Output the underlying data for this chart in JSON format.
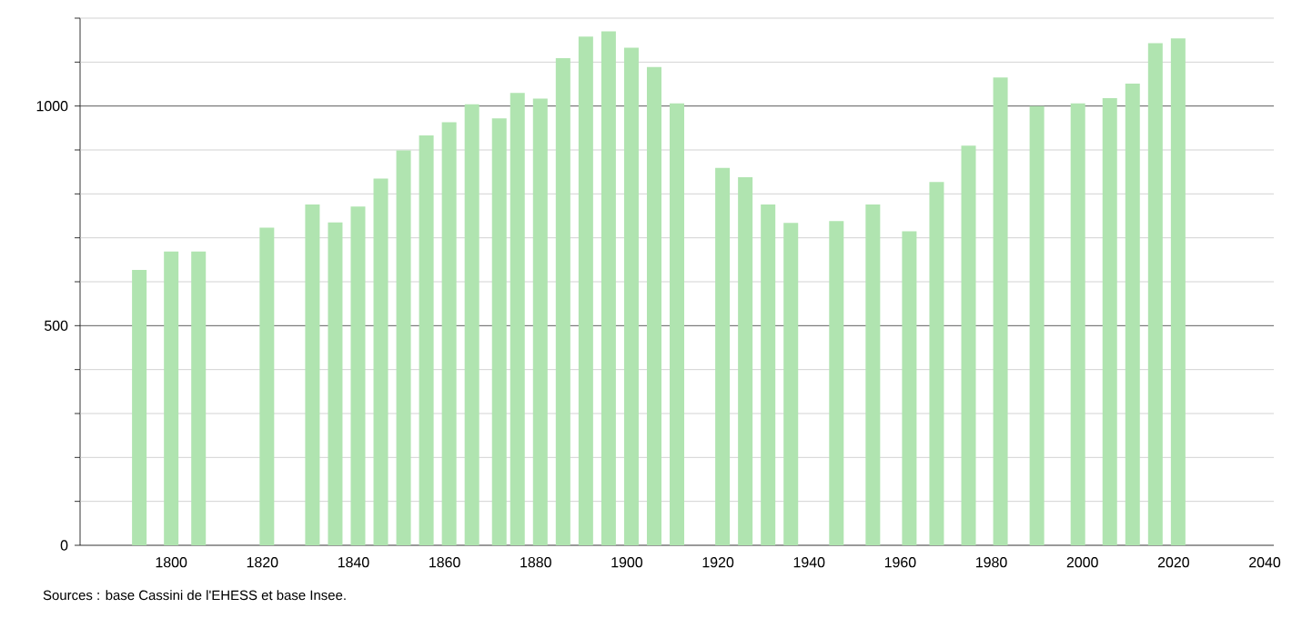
{
  "chart_data": {
    "type": "bar",
    "x": [
      1793,
      1800,
      1806,
      1821,
      1831,
      1836,
      1841,
      1846,
      1851,
      1856,
      1861,
      1866,
      1872,
      1876,
      1881,
      1886,
      1891,
      1896,
      1901,
      1906,
      1911,
      1921,
      1926,
      1931,
      1936,
      1946,
      1954,
      1962,
      1968,
      1975,
      1982,
      1990,
      1999,
      2006,
      2011,
      2016,
      2021
    ],
    "values": [
      627,
      669,
      669,
      723,
      776,
      735,
      771,
      835,
      899,
      933,
      963,
      1004,
      972,
      1030,
      1017,
      1109,
      1158,
      1170,
      1133,
      1089,
      1006,
      859,
      838,
      776,
      734,
      738,
      776,
      715,
      827,
      910,
      1065,
      1000,
      1006,
      1018,
      1051,
      1143,
      1154
    ],
    "color": "#b0e4b0",
    "xlim": [
      1780,
      2042
    ],
    "ylim": [
      0,
      1200
    ],
    "xticks": [
      1800,
      1820,
      1840,
      1860,
      1880,
      1900,
      1920,
      1940,
      1960,
      1980,
      2000,
      2020,
      2040
    ],
    "yticks": [
      0,
      {
        "value": 100,
        "label": null
      },
      {
        "value": 200,
        "label": null
      },
      {
        "value": 300,
        "label": null
      },
      {
        "value": 400,
        "label": null
      },
      500,
      {
        "value": 600,
        "label": null
      },
      {
        "value": 700,
        "label": null
      },
      {
        "value": 800,
        "label": null
      },
      {
        "value": 900,
        "label": null
      },
      1000,
      {
        "value": 1100,
        "label": null
      },
      {
        "value": 1200,
        "label": null
      }
    ],
    "grid": "y",
    "annotations": [
      "Sources : base Cassini de l'EHESS et base Insee."
    ]
  }
}
